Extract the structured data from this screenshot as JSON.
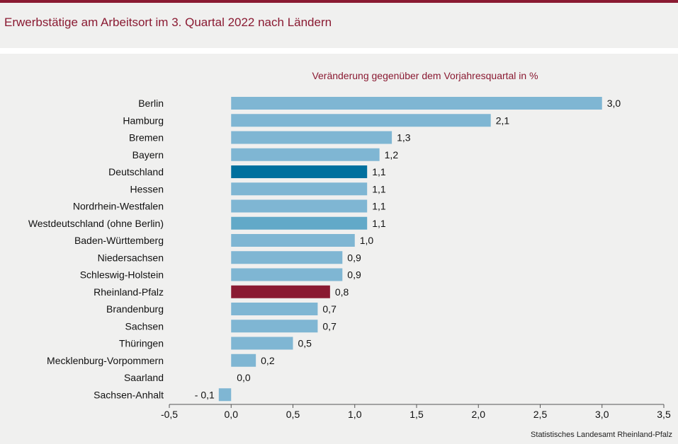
{
  "title": "Erwerbstätige am Arbeitsort im 3. Quartal 2022 nach Ländern",
  "source": "Statistisches Landesamt Rheinland-Pfalz",
  "colors": {
    "default_bar": "#7fb6d3",
    "germany_bar": "#00709e",
    "west_bar": "#62a9c8",
    "rlp_bar": "#8a1a32",
    "title": "#8a1a32"
  },
  "chart_data": {
    "type": "bar",
    "orientation": "horizontal",
    "subtitle": "Veränderung  gegenüber  dem  Vorjahresquartal  in %",
    "categories": [
      "Berlin",
      "Hamburg",
      "Bremen",
      "Bayern",
      "Deutschland",
      "Hessen",
      "Nordrhein-Westfalen",
      "Westdeutschland (ohne Berlin)",
      "Baden-Württemberg",
      "Niedersachsen",
      "Schleswig-Holstein",
      "Rheinland-Pfalz",
      "Brandenburg",
      "Sachsen",
      "Thüringen",
      "Mecklenburg-Vorpommern",
      "Saarland",
      "Sachsen-Anhalt"
    ],
    "values": [
      3.0,
      2.1,
      1.3,
      1.2,
      1.1,
      1.1,
      1.1,
      1.1,
      1.0,
      0.9,
      0.9,
      0.8,
      0.7,
      0.7,
      0.5,
      0.2,
      0.0,
      -0.1
    ],
    "value_labels": [
      "3,0",
      "2,1",
      "1,3",
      "1,2",
      "1,1",
      "1,1",
      "1,1",
      "1,1",
      "1,0",
      "0,9",
      "0,9",
      "0,8",
      "0,7",
      "0,7",
      "0,5",
      "0,2",
      "0,0",
      "- 0,1"
    ],
    "highlight": {
      "Deutschland": "germany_bar",
      "Westdeutschland (ohne Berlin)": "west_bar",
      "Rheinland-Pfalz": "rlp_bar"
    },
    "xlim": [
      -0.5,
      3.5
    ],
    "xticks": [
      -0.5,
      0.0,
      0.5,
      1.0,
      1.5,
      2.0,
      2.5,
      3.0,
      3.5
    ],
    "xtick_labels": [
      "-0,5",
      "0,0",
      "0,5",
      "1,0",
      "1,5",
      "2,0",
      "2,5",
      "3,0",
      "3,5"
    ],
    "grid": false,
    "legend": "none"
  }
}
